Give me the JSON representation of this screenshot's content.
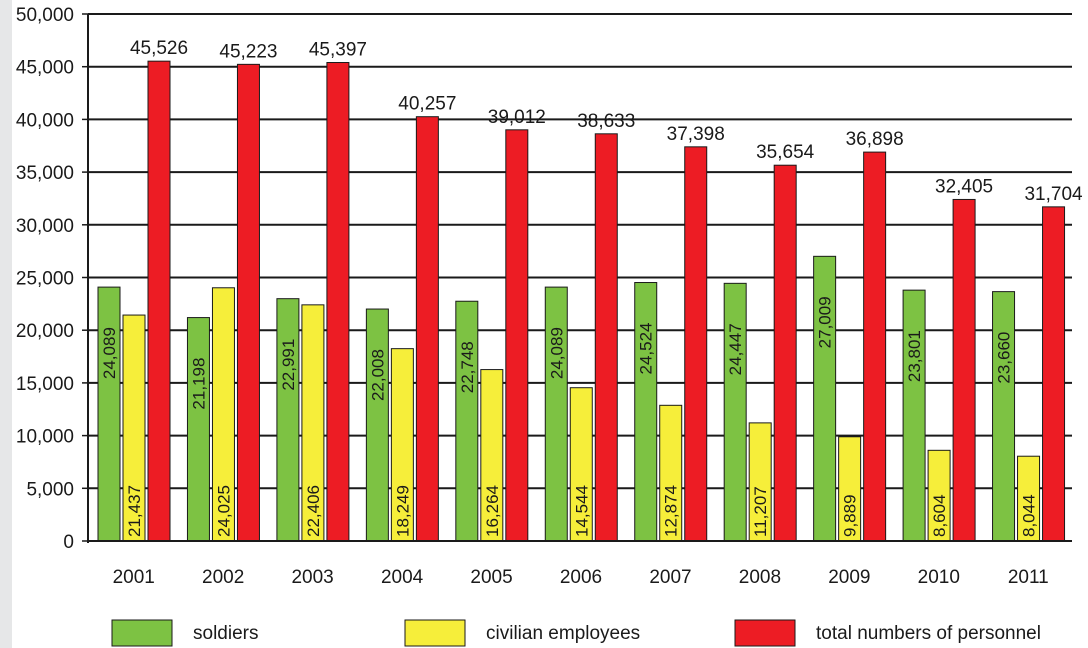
{
  "chart_data": {
    "type": "bar",
    "title": "",
    "xlabel": "",
    "ylabel": "",
    "categories": [
      "2001",
      "2002",
      "2003",
      "2004",
      "2005",
      "2006",
      "2007",
      "2008",
      "2009",
      "2010",
      "2011"
    ],
    "ylim": [
      0,
      50000
    ],
    "yticks": [
      0,
      5000,
      10000,
      15000,
      20000,
      25000,
      30000,
      35000,
      40000,
      45000,
      50000
    ],
    "ytick_labels": [
      "0",
      "5,000",
      "10,000",
      "15,000",
      "20,000",
      "25,000",
      "30,000",
      "35,000",
      "40,000",
      "45,000",
      "50,000"
    ],
    "grid": "horizontal",
    "legend_position": "bottom",
    "series": [
      {
        "name": "soldiers",
        "color": "#7dc243",
        "values": [
          24089,
          21198,
          22991,
          22008,
          22748,
          24089,
          24524,
          24447,
          27009,
          23801,
          23660
        ],
        "labels": [
          "24,089",
          "21,198",
          "22,991",
          "22,008",
          "22,748",
          "24,089",
          "24,524",
          "24,447",
          "27,009",
          "23,801",
          "23,660"
        ]
      },
      {
        "name": "civilian employees",
        "color": "#f6ee3a",
        "values": [
          21437,
          24025,
          22406,
          18249,
          16264,
          14544,
          12874,
          11207,
          9889,
          8604,
          8044
        ],
        "labels": [
          "21,437",
          "24,025",
          "22,406",
          "18,249",
          "16,264",
          "14,544",
          "12,874",
          "11,207",
          "9,889",
          "8,604",
          "8,044"
        ]
      },
      {
        "name": "total numbers of personnel",
        "color": "#ed1c24",
        "values": [
          45526,
          45223,
          45397,
          40257,
          39012,
          38633,
          37398,
          35654,
          36898,
          32405,
          31704
        ],
        "labels": [
          "45,526",
          "45,223",
          "45,397",
          "40,257",
          "39,012",
          "38,633",
          "37,398",
          "35,654",
          "36,898",
          "32,405",
          "31,704"
        ]
      }
    ]
  }
}
